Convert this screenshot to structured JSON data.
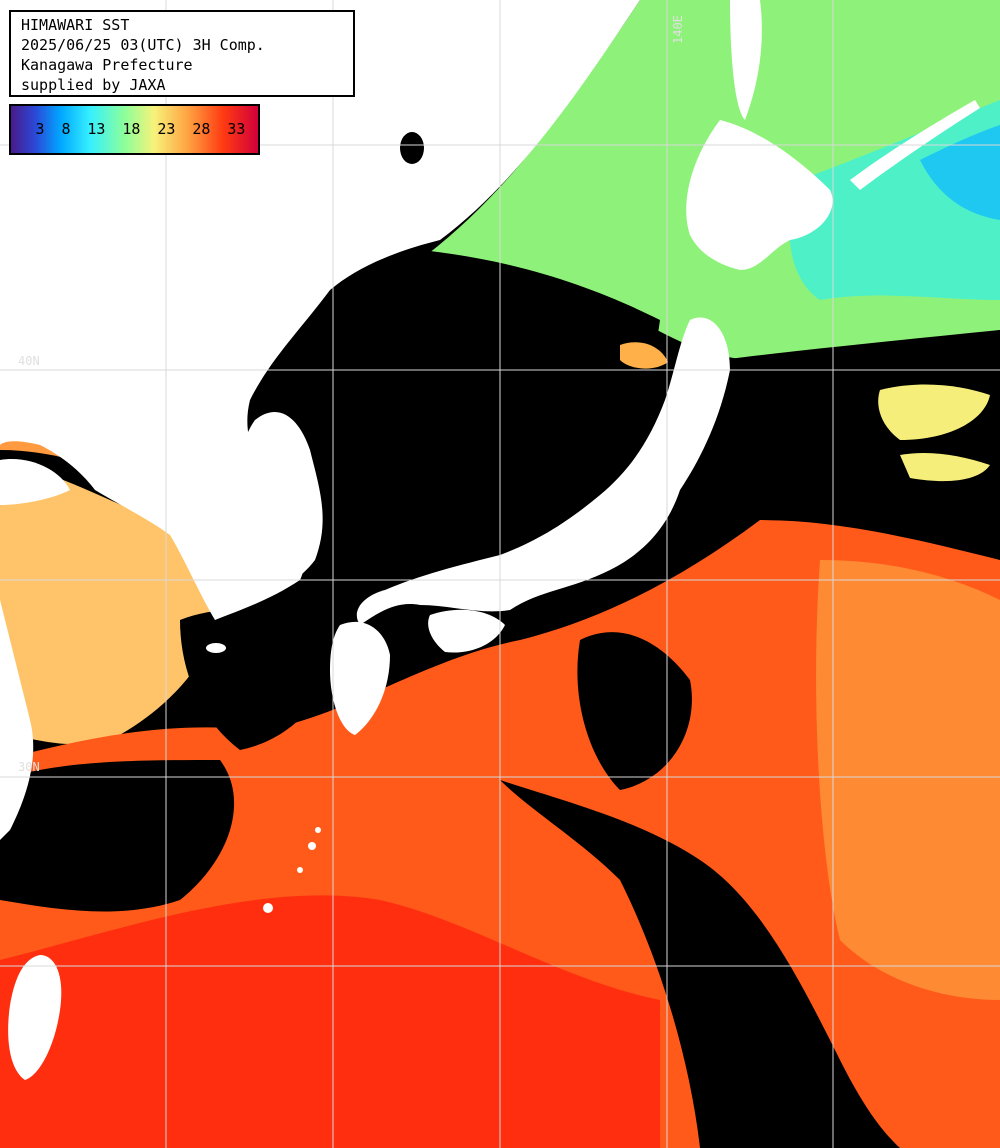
{
  "title": {
    "lines": [
      "HIMAWARI SST",
      "2025/06/25 03(UTC) 3H Comp.",
      "Kanagawa Prefecture",
      "supplied by JAXA"
    ]
  },
  "legend": {
    "labels": [
      "3",
      "8",
      "13",
      "18",
      "23",
      "28",
      "33"
    ],
    "colors": [
      "#4a1a8a",
      "#2a4ad8",
      "#00a6ff",
      "#35f0ff",
      "#8dff9a",
      "#f7f27a",
      "#ffa040",
      "#ff3a12",
      "#d2003a"
    ]
  },
  "grid": {
    "lon_label": "140E",
    "lat_labels": [
      "40N",
      "30N"
    ]
  },
  "colors": {
    "land": "#ffffff",
    "cloud": "#000000",
    "grid": "#d8d8d8"
  }
}
